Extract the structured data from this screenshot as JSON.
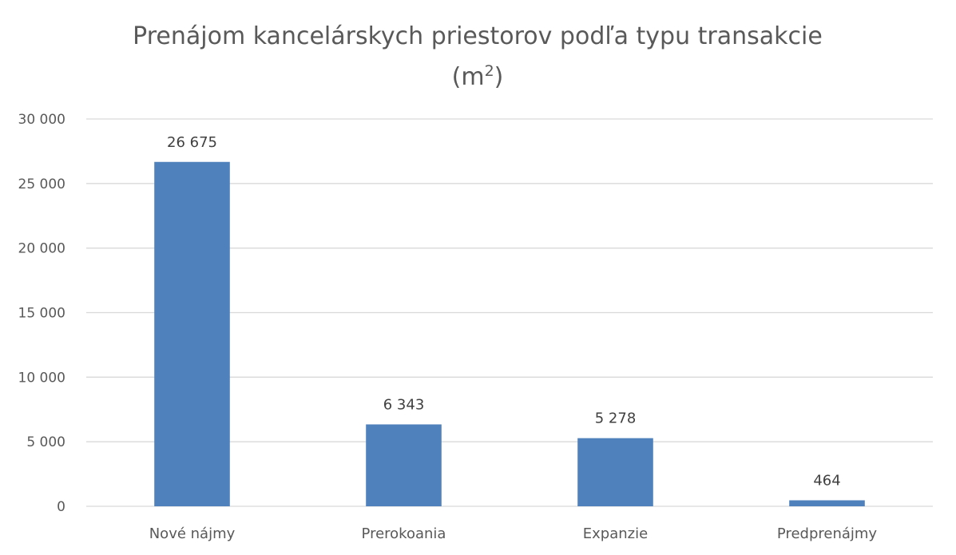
{
  "chart_data": {
    "type": "bar",
    "title_line1": "Prenájom kancelárskych priestorov podľa typu transakcie",
    "title_line2_prefix": "(m",
    "title_line2_sup": "2",
    "title_line2_suffix": ")",
    "categories": [
      "Nové nájmy",
      "Prerokoania",
      "Expanzie",
      "Predprenájmy"
    ],
    "values": [
      26675,
      6343,
      5278,
      464
    ],
    "value_labels": [
      "26 675",
      "6 343",
      "5 278",
      "464"
    ],
    "ylim": [
      0,
      30000
    ],
    "yticks": [
      0,
      5000,
      10000,
      15000,
      20000,
      25000,
      30000
    ],
    "ytick_labels": [
      "0",
      "5 000",
      "10 000",
      "15 000",
      "20 000",
      "25 000",
      "30 000"
    ],
    "grid": true,
    "legend": "none",
    "bar_color": "#4f81bd"
  }
}
